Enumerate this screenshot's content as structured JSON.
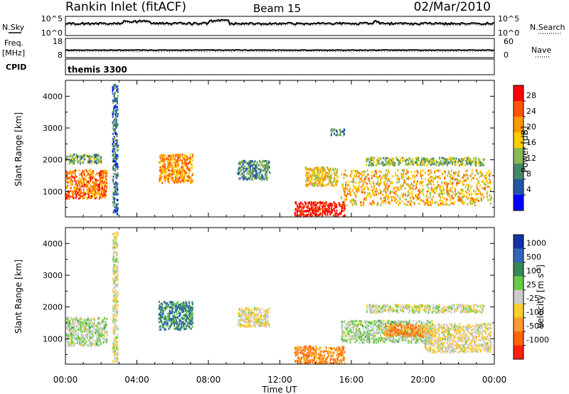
{
  "header": {
    "station": "Rankin Inlet (fitACF)",
    "beam": "Beam 15",
    "date": "02/Mar/2010"
  },
  "sky_panel": {
    "left_label": "N.Sky",
    "left_ticks": [
      "10^5",
      "10^0"
    ],
    "right_ticks": [
      "10^5",
      "10^0"
    ],
    "right_label": "N.Search"
  },
  "freq_panel": {
    "left_label_top": "Freq.",
    "left_label_bottom": "[MHz]",
    "left_ticks": [
      "18",
      "8"
    ],
    "right_ticks": [
      "60",
      "0"
    ],
    "right_label": "Nave"
  },
  "cpid_panel": {
    "label": "CPID",
    "value": "themis 3300"
  },
  "power_colorbar": {
    "label": "Power [dB]",
    "ticks": [
      "28",
      "24",
      "20",
      "16",
      "12",
      "8",
      "4"
    ],
    "colors": [
      "#ff0000",
      "#ff5500",
      "#ff9900",
      "#ffcc00",
      "#88bb55",
      "#448866",
      "#2255aa",
      "#0000ff"
    ]
  },
  "velocity_colorbar": {
    "label_main": "Velocity [m s",
    "label_sup": "-1",
    "label_end": "]",
    "ticks": [
      "1000",
      "500",
      "100",
      "25",
      "-25",
      "-100",
      "-500",
      "-1000"
    ],
    "colors": [
      "#1133aa",
      "#3366bb",
      "#338855",
      "#66cc44",
      "#cccccc",
      "#ffcc33",
      "#ff9933",
      "#ff6600",
      "#ff2200"
    ]
  },
  "time_axis": {
    "title": "Time UT",
    "ticks": [
      "00:00",
      "04:00",
      "08:00",
      "12:00",
      "16:00",
      "20:00",
      "00:00"
    ]
  },
  "chart_data": {
    "type": "heatmap",
    "xlabel": "Time UT",
    "ylabel": "Slant Range [km]",
    "xlim_hours": [
      0,
      24
    ],
    "ylim_km": [
      200,
      4500
    ],
    "yticks": [
      1000,
      2000,
      3000,
      4000
    ],
    "panels": [
      {
        "name": "Power",
        "unit": "dB",
        "color_range": [
          0,
          32
        ],
        "regions": [
          {
            "t": [
              0.0,
              2.3
            ],
            "r": [
              800,
              1700
            ],
            "value": 24
          },
          {
            "t": [
              0.0,
              2.0
            ],
            "r": [
              1900,
              2200
            ],
            "value": 12
          },
          {
            "t": [
              5.2,
              7.1
            ],
            "r": [
              1300,
              2200
            ],
            "value": 22
          },
          {
            "t": [
              9.6,
              11.4
            ],
            "r": [
              1400,
              2000
            ],
            "value": 10
          },
          {
            "t": [
              12.8,
              15.6
            ],
            "r": [
              250,
              700
            ],
            "value": 30
          },
          {
            "t": [
              13.4,
              15.2
            ],
            "r": [
              1200,
              1800
            ],
            "value": 18
          },
          {
            "t": [
              15.4,
              23.8
            ],
            "r": [
              600,
              1700
            ],
            "value": 20
          },
          {
            "t": [
              16.8,
              23.4
            ],
            "r": [
              1850,
              2100
            ],
            "value": 14
          },
          {
            "t": [
              14.8,
              15.6
            ],
            "r": [
              2800,
              3000
            ],
            "value": 10
          },
          {
            "t": [
              2.6,
              2.9
            ],
            "r": [
              300,
              4400
            ],
            "value": 8
          }
        ]
      },
      {
        "name": "Velocity",
        "unit": "m s-1",
        "color_range": [
          -1000,
          1000
        ],
        "regions": [
          {
            "t": [
              0.0,
              2.3
            ],
            "r": [
              800,
              1700
            ],
            "value": 100
          },
          {
            "t": [
              5.2,
              7.1
            ],
            "r": [
              1300,
              2200
            ],
            "value": 500
          },
          {
            "t": [
              9.6,
              11.4
            ],
            "r": [
              1400,
              2000
            ],
            "value": -100
          },
          {
            "t": [
              12.8,
              15.6
            ],
            "r": [
              250,
              800
            ],
            "value": -500
          },
          {
            "t": [
              15.4,
              20.5
            ],
            "r": [
              900,
              1600
            ],
            "value": 100
          },
          {
            "t": [
              17.8,
              20.2
            ],
            "r": [
              1100,
              1500
            ],
            "value": -500
          },
          {
            "t": [
              20.0,
              23.8
            ],
            "r": [
              600,
              1500
            ],
            "value": -100
          },
          {
            "t": [
              16.8,
              23.4
            ],
            "r": [
              1850,
              2100
            ],
            "value": 0
          },
          {
            "t": [
              2.6,
              2.9
            ],
            "r": [
              300,
              4400
            ],
            "value": -50
          }
        ]
      }
    ]
  }
}
